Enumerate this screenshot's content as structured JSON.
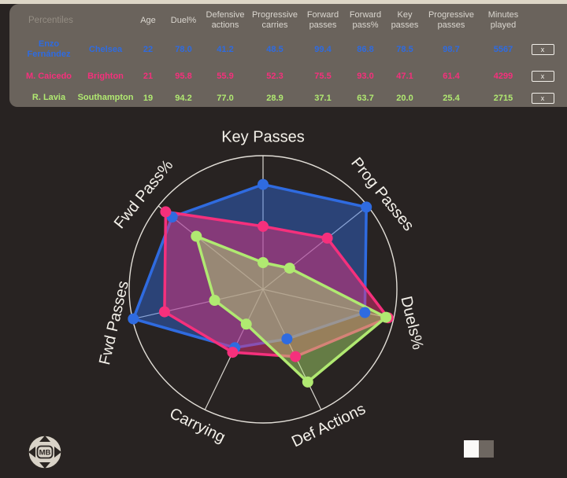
{
  "window": {
    "bg": "#282322",
    "top_strip_color": "#ddd6c7"
  },
  "table": {
    "bg": "#6a635c",
    "corner_label": "Percentiles",
    "columns": [
      "Age",
      "Duel%",
      "Defensive actions",
      "Progressive carries",
      "Forward passes",
      "Forward pass%",
      "Key passes",
      "Progressive passes",
      "Minutes played"
    ],
    "remove_label": "x",
    "rows": [
      {
        "player": "Enzo Fernández",
        "team": "Chelsea",
        "color": "#2f6be0",
        "values": [
          "22",
          "78.0",
          "41.2",
          "48.5",
          "99.4",
          "86.8",
          "78.5",
          "98.7",
          "5567"
        ]
      },
      {
        "player": "M. Caicedo",
        "team": "Brighton",
        "color": "#f5307c",
        "values": [
          "21",
          "95.8",
          "55.9",
          "52.3",
          "75.5",
          "93.0",
          "47.1",
          "61.4",
          "4299"
        ]
      },
      {
        "player": "R. Lavia",
        "team": "Southampton",
        "color": "#b0e971",
        "values": [
          "19",
          "94.2",
          "77.0",
          "28.9",
          "37.1",
          "63.7",
          "20.0",
          "25.4",
          "2715"
        ]
      }
    ]
  },
  "chart_data": {
    "type": "radar",
    "categories": [
      "Key Passes",
      "Prog Passes",
      "Duels%",
      "Def Actions",
      "Carrying",
      "Fwd Passes",
      "Fwd Pass%"
    ],
    "series": [
      {
        "name": "Enzo Fernández",
        "color": "#2f6be0",
        "values": [
          78.5,
          98.7,
          78.0,
          41.2,
          48.5,
          99.4,
          86.8
        ]
      },
      {
        "name": "M. Caicedo",
        "color": "#f5307c",
        "values": [
          47.1,
          61.4,
          95.8,
          55.9,
          52.3,
          75.5,
          93.0
        ]
      },
      {
        "name": "R. Lavia",
        "color": "#b0e971",
        "values": [
          20.0,
          25.4,
          94.2,
          77.0,
          28.9,
          37.1,
          63.7
        ]
      }
    ],
    "rmin": 0,
    "rmax": 100,
    "gridlines": false,
    "outer_ring": true,
    "legend": "none",
    "label_rotations": [
      0,
      51,
      77,
      -26,
      26,
      -77,
      -51
    ],
    "fill_opacity": 0.45,
    "axis_color": "#ece9e2",
    "label_color": "#f4f1ea"
  },
  "footer": {
    "logo_text": "MB",
    "page_indicator": {
      "active_color": "#fbfaf8",
      "inactive_color": "#6e6761"
    }
  }
}
